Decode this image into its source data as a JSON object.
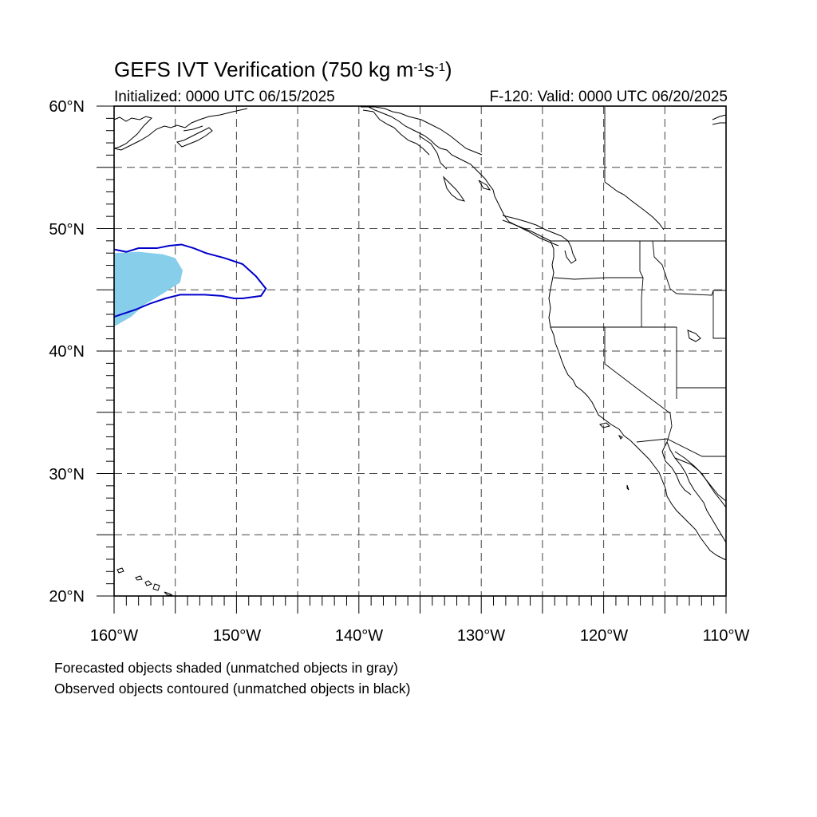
{
  "title": {
    "main": "GEFS IVT Verification (750 kg m",
    "exp1": "-1",
    "mid": "s",
    "exp2": "-1",
    "close": ")"
  },
  "initialized": "Initialized: 0000 UTC 06/15/2025",
  "valid": "F-120: Valid: 0000 UTC 06/20/2025",
  "map": {
    "lon_range": [
      -160,
      -110
    ],
    "lat_range": [
      20,
      60
    ],
    "grid_lon_step": 5,
    "grid_lat_step": 5,
    "gridlines": "dashed",
    "y_ticks": [
      "60°N",
      "50°N",
      "40°N",
      "30°N",
      "20°N"
    ],
    "x_ticks": [
      "160°W",
      "150°W",
      "140°W",
      "130°W",
      "120°W",
      "110°W"
    ],
    "forecast_object_color": "#87ceeb",
    "observed_contour_color": "#0000cc",
    "coastline_color": "#000000",
    "forecast_object": [
      [
        -160,
        48
      ],
      [
        -158,
        48.1
      ],
      [
        -156,
        47.9
      ],
      [
        -155,
        47.6
      ],
      [
        -154.4,
        46.6
      ],
      [
        -154.6,
        45.6
      ],
      [
        -156,
        44.7
      ],
      [
        -157.5,
        43.8
      ],
      [
        -158.6,
        42.8
      ],
      [
        -160,
        42
      ]
    ],
    "observed_contour": [
      [
        -160,
        48.3
      ],
      [
        -159,
        48.1
      ],
      [
        -158,
        48.4
      ],
      [
        -156.5,
        48.4
      ],
      [
        -155.5,
        48.6
      ],
      [
        -154.5,
        48.7
      ],
      [
        -153.5,
        48.4
      ],
      [
        -152.5,
        48
      ],
      [
        -151,
        47.6
      ],
      [
        -149.5,
        47.1
      ],
      [
        -148.4,
        46.1
      ],
      [
        -147.6,
        45.1
      ],
      [
        -148,
        44.5
      ],
      [
        -149.5,
        44.3
      ],
      [
        -150.2,
        44.3
      ],
      [
        -151.2,
        44.5
      ],
      [
        -152.6,
        44.6
      ],
      [
        -154.6,
        44.6
      ],
      [
        -155.8,
        44.3
      ],
      [
        -157,
        43.9
      ],
      [
        -158.2,
        43.4
      ],
      [
        -160,
        42.8
      ]
    ]
  },
  "notes": [
    "Forecasted objects shaded (unmatched objects in gray)",
    "Observed objects contoured (unmatched objects in black)"
  ]
}
